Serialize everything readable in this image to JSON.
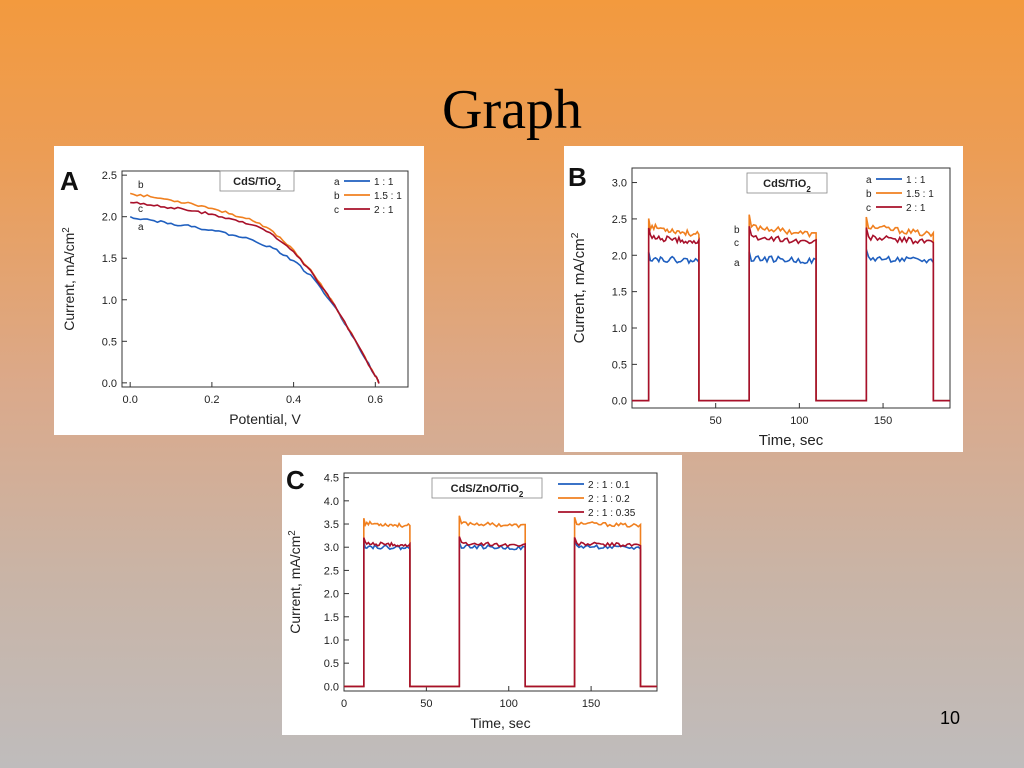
{
  "slide": {
    "title": "Graph",
    "page_number": "10"
  },
  "chart_data": [
    {
      "type": "line",
      "panel_letter": "A",
      "title": "CdS/TiO2",
      "xlabel": "Potential, V",
      "ylabel": "Current, mA/cm2",
      "xlim": [
        -0.02,
        0.68
      ],
      "ylim": [
        -0.05,
        2.55
      ],
      "xticks": [
        0.0,
        0.2,
        0.4,
        0.6
      ],
      "xtick_labels": [
        "0.0",
        "0.2",
        "0.4",
        "0.6"
      ],
      "yticks": [
        0.0,
        0.5,
        1.0,
        1.5,
        2.0,
        2.5
      ],
      "ytick_labels": [
        "0.0",
        "0.5",
        "1.0",
        "1.5",
        "2.0",
        "2.5"
      ],
      "legend_position": "top-right",
      "series": [
        {
          "name": "1 : 1",
          "tag": "a",
          "color": "#1f5fbf",
          "x": [
            0.0,
            0.05,
            0.1,
            0.15,
            0.2,
            0.25,
            0.3,
            0.35,
            0.4,
            0.45,
            0.5,
            0.55,
            0.6,
            0.61
          ],
          "y": [
            2.0,
            1.96,
            1.92,
            1.88,
            1.84,
            1.78,
            1.72,
            1.62,
            1.47,
            1.25,
            0.92,
            0.52,
            0.08,
            0.0
          ]
        },
        {
          "name": "1.5 : 1",
          "tag": "b",
          "color": "#f08020",
          "x": [
            0.0,
            0.05,
            0.1,
            0.15,
            0.2,
            0.25,
            0.3,
            0.35,
            0.4,
            0.45,
            0.5,
            0.55,
            0.6,
            0.61
          ],
          "y": [
            2.28,
            2.24,
            2.2,
            2.16,
            2.1,
            2.03,
            1.95,
            1.82,
            1.6,
            1.3,
            0.94,
            0.52,
            0.08,
            0.0
          ]
        },
        {
          "name": "2 : 1",
          "tag": "c",
          "color": "#a8102a",
          "x": [
            0.0,
            0.05,
            0.1,
            0.15,
            0.2,
            0.25,
            0.3,
            0.35,
            0.4,
            0.45,
            0.5,
            0.55,
            0.6,
            0.61
          ],
          "y": [
            2.17,
            2.14,
            2.11,
            2.07,
            2.03,
            1.97,
            1.9,
            1.78,
            1.58,
            1.29,
            0.94,
            0.52,
            0.08,
            0.0
          ]
        }
      ]
    },
    {
      "type": "line",
      "panel_letter": "B",
      "title": "CdS/TiO2",
      "xlabel": "Time, sec",
      "ylabel": "Current, mA/cm2",
      "xlim": [
        0,
        190
      ],
      "ylim": [
        -0.1,
        3.2
      ],
      "xticks": [
        50,
        100,
        150
      ],
      "xtick_labels": [
        "50",
        "100",
        "150"
      ],
      "yticks": [
        0.0,
        0.5,
        1.0,
        1.5,
        2.0,
        2.5,
        3.0
      ],
      "ytick_labels": [
        "0.0",
        "0.5",
        "1.0",
        "1.5",
        "2.0",
        "2.5",
        "3.0"
      ],
      "legend_position": "top-right",
      "on_intervals": [
        [
          10,
          40
        ],
        [
          70,
          110
        ],
        [
          140,
          180
        ]
      ],
      "series": [
        {
          "name": "1 : 1",
          "tag": "a",
          "color": "#1f5fbf",
          "on_start": 1.96,
          "on_end": 1.92,
          "off": 0.0
        },
        {
          "name": "1.5 : 1",
          "tag": "b",
          "color": "#f08020",
          "on_start": 2.4,
          "on_end": 2.28,
          "off": 0.0
        },
        {
          "name": "2 : 1",
          "tag": "c",
          "color": "#a8102a",
          "on_start": 2.25,
          "on_end": 2.18,
          "off": 0.0
        }
      ]
    },
    {
      "type": "line",
      "panel_letter": "C",
      "title": "CdS/ZnO/TiO2",
      "xlabel": "Time, sec",
      "ylabel": "Current, mA/cm2",
      "xlim": [
        0,
        190
      ],
      "ylim": [
        -0.1,
        4.6
      ],
      "xticks": [
        0,
        50,
        100,
        150
      ],
      "xtick_labels": [
        "0",
        "50",
        "100",
        "150"
      ],
      "yticks": [
        0.0,
        0.5,
        1.0,
        1.5,
        2.0,
        2.5,
        3.0,
        3.5,
        4.0,
        4.5
      ],
      "ytick_labels": [
        "0.0",
        "0.5",
        "1.0",
        "1.5",
        "2.0",
        "2.5",
        "3.0",
        "3.5",
        "4.0",
        "4.5"
      ],
      "legend_position": "top-right",
      "on_intervals": [
        [
          12,
          40
        ],
        [
          70,
          110
        ],
        [
          140,
          180
        ]
      ],
      "series": [
        {
          "name": "2 : 1 : 0.1",
          "color": "#1f5fbf",
          "on_start": 3.02,
          "on_end": 2.98,
          "off": 0.0
        },
        {
          "name": "2 : 1 : 0.2",
          "color": "#f08020",
          "on_start": 3.52,
          "on_end": 3.46,
          "off": 0.0
        },
        {
          "name": "2 : 1 : 0.35",
          "color": "#a8102a",
          "on_start": 3.08,
          "on_end": 3.04,
          "off": 0.0
        }
      ]
    }
  ]
}
